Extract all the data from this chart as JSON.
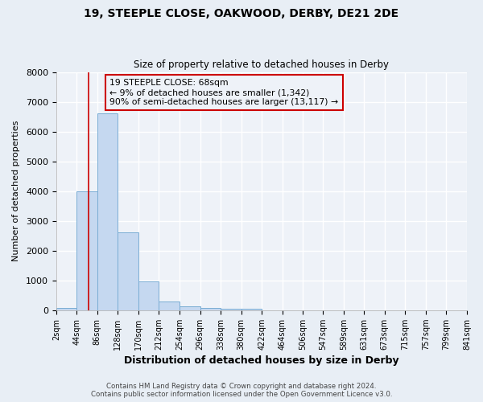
{
  "title1": "19, STEEPLE CLOSE, OAKWOOD, DERBY, DE21 2DE",
  "title2": "Size of property relative to detached houses in Derby",
  "xlabel": "Distribution of detached houses by size in Derby",
  "ylabel": "Number of detached properties",
  "bin_edges": [
    2,
    44,
    86,
    128,
    170,
    212,
    254,
    296,
    338,
    380,
    422,
    464,
    506,
    547,
    589,
    631,
    673,
    715,
    757,
    799,
    841
  ],
  "bar_heights": [
    75,
    3980,
    6600,
    2620,
    960,
    300,
    130,
    90,
    50,
    50,
    0,
    0,
    0,
    0,
    0,
    0,
    0,
    0,
    0,
    0
  ],
  "bar_color": "#c5d8f0",
  "bar_edgecolor": "#7aadd4",
  "property_size": 68,
  "vline_color": "#cc0000",
  "annotation_line1": "19 STEEPLE CLOSE: 68sqm",
  "annotation_line2": "← 9% of detached houses are smaller (1,342)",
  "annotation_line3": "90% of semi-detached houses are larger (13,117) →",
  "ylim": [
    0,
    8000
  ],
  "yticks": [
    0,
    1000,
    2000,
    3000,
    4000,
    5000,
    6000,
    7000,
    8000
  ],
  "tick_labels": [
    "2sqm",
    "44sqm",
    "86sqm",
    "128sqm",
    "170sqm",
    "212sqm",
    "254sqm",
    "296sqm",
    "338sqm",
    "380sqm",
    "422sqm",
    "464sqm",
    "506sqm",
    "547sqm",
    "589sqm",
    "631sqm",
    "673sqm",
    "715sqm",
    "757sqm",
    "799sqm",
    "841sqm"
  ],
  "footer_line1": "Contains HM Land Registry data © Crown copyright and database right 2024.",
  "footer_line2": "Contains public sector information licensed under the Open Government Licence v3.0.",
  "figure_facecolor": "#e8eef5",
  "plot_facecolor": "#eef2f8",
  "grid_color": "#ffffff",
  "figwidth": 6.0,
  "figheight": 5.0,
  "dpi": 100
}
